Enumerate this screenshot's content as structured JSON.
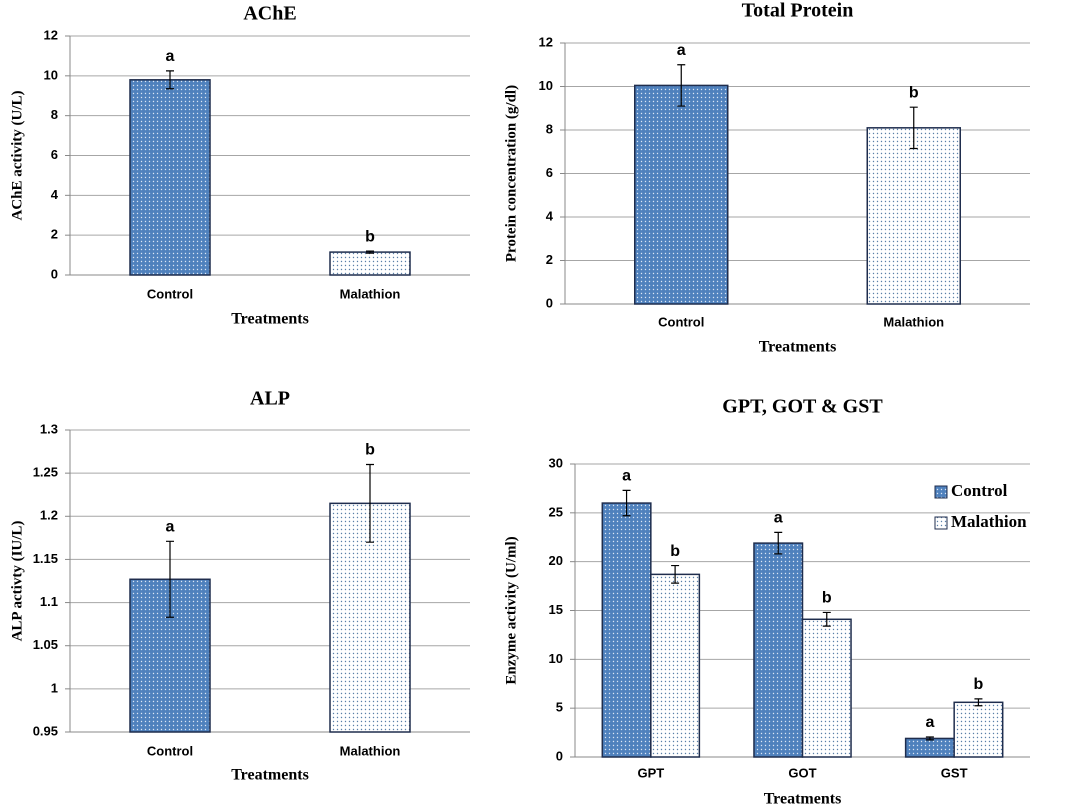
{
  "chart_data": [
    {
      "type": "bar",
      "title": "AChE",
      "xlabel": "Treatments",
      "ylabel": "AChE activity (U/L)",
      "categories": [
        "Control",
        "Malathion"
      ],
      "values": [
        9.8,
        1.15
      ],
      "errors": [
        0.45,
        0.05
      ],
      "letters": [
        "a",
        "b"
      ],
      "colors": [
        "#4f81bd",
        "#ffffff"
      ],
      "ylim": [
        0,
        12
      ],
      "yticks": [
        0,
        2,
        4,
        6,
        8,
        10,
        12
      ],
      "grid": true
    },
    {
      "type": "bar",
      "title": "Total Protein",
      "xlabel": "Treatments",
      "ylabel": "Protein concentration (g/dl)",
      "categories": [
        "Control",
        "Malathion"
      ],
      "values": [
        10.05,
        8.1
      ],
      "errors": [
        0.95,
        0.95
      ],
      "letters": [
        "a",
        "b"
      ],
      "colors": [
        "#4f81bd",
        "#ffffff"
      ],
      "ylim": [
        0,
        12
      ],
      "yticks": [
        0,
        2,
        4,
        6,
        8,
        10,
        12
      ],
      "grid": true
    },
    {
      "type": "bar",
      "title": "ALP",
      "xlabel": "Treatments",
      "ylabel": "ALP activty (IU/L)",
      "categories": [
        "Control",
        "Malathion"
      ],
      "values": [
        1.127,
        1.215
      ],
      "errors": [
        0.044,
        0.045
      ],
      "letters": [
        "a",
        "b"
      ],
      "colors": [
        "#4f81bd",
        "#ffffff"
      ],
      "ylim": [
        0.95,
        1.3
      ],
      "yticks": [
        0.95,
        1,
        1.05,
        1.1,
        1.15,
        1.2,
        1.25,
        1.3
      ],
      "grid": true
    },
    {
      "type": "grouped_bar",
      "title": "GPT, GOT & GST",
      "xlabel": "Treatments",
      "ylabel": "Enzyme activity (U/ml)",
      "categories": [
        "GPT",
        "GOT",
        "GST"
      ],
      "series": [
        {
          "name": "Control",
          "color": "#4f81bd",
          "values": [
            26,
            21.9,
            1.9
          ],
          "errors": [
            1.3,
            1.1,
            0.15
          ],
          "letters": [
            "a",
            "a",
            "a"
          ]
        },
        {
          "name": "Malathion",
          "color": "#ffffff",
          "values": [
            18.7,
            14.1,
            5.6
          ],
          "errors": [
            0.9,
            0.7,
            0.35
          ],
          "letters": [
            "b",
            "b",
            "b"
          ]
        }
      ],
      "ylim": [
        0,
        30
      ],
      "yticks": [
        0,
        5,
        10,
        15,
        20,
        25,
        30
      ],
      "grid": true,
      "legend": "upper right"
    }
  ]
}
